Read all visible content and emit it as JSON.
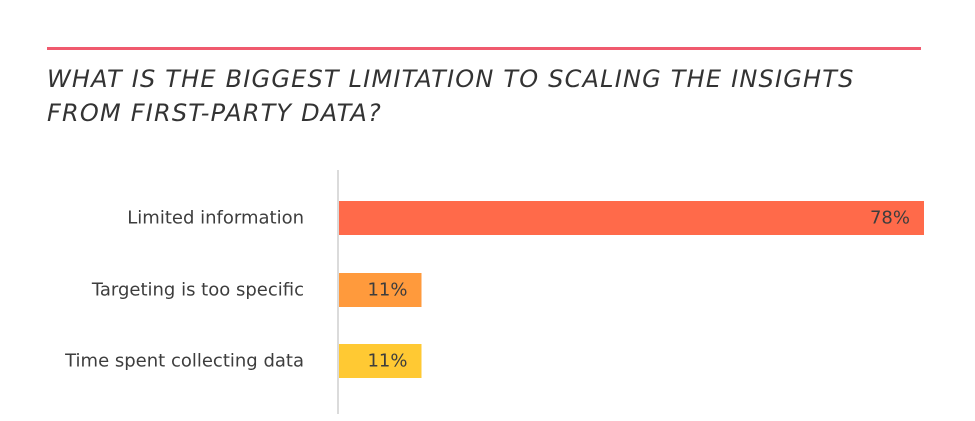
{
  "title": "WHAT IS THE BIGGEST LIMITATION TO SCALING THE INSIGHTS FROM FIRST-PARTY DATA?",
  "colors": {
    "rule": "#f05a6e",
    "axis": "#cfcfcf",
    "text": "#3d3d3d"
  },
  "chart_data": {
    "type": "bar",
    "orientation": "horizontal",
    "title": "WHAT IS THE BIGGEST LIMITATION TO SCALING THE INSIGHTS FROM FIRST-PARTY DATA?",
    "categories": [
      "Limited information",
      "Targeting is too specific",
      "Time spent collecting data"
    ],
    "values": [
      78,
      11,
      11
    ],
    "value_labels": [
      "78%",
      "11%",
      "11%"
    ],
    "bar_colors": [
      "#ff6a4a",
      "#ff9a3c",
      "#ffc933"
    ],
    "xlim": [
      0,
      78
    ],
    "grid": false,
    "legend": "none"
  }
}
